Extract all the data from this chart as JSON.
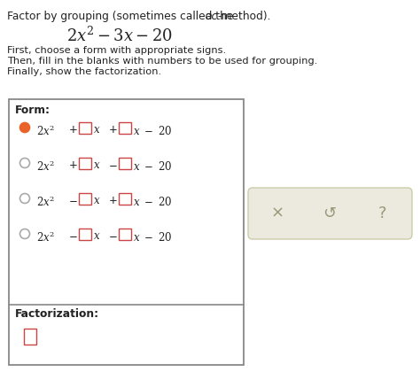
{
  "instructions": [
    "First, choose a form with appropriate signs.",
    "Then, fill in the blanks with numbers to be used for grouping.",
    "Finally, show the factorization."
  ],
  "form_label": "Form:",
  "factorization_label": "Factorization:",
  "rows": [
    {
      "radio_filled": true,
      "sign1": "+",
      "sign2": "+"
    },
    {
      "radio_filled": false,
      "sign1": "+",
      "sign2": "−"
    },
    {
      "radio_filled": false,
      "sign1": "−",
      "sign2": "+"
    },
    {
      "radio_filled": false,
      "sign1": "−",
      "sign2": "−"
    }
  ],
  "radio_filled_color": "#e8622a",
  "radio_empty_color": "#ffffff",
  "radio_border_color": "#aaaaaa",
  "box_border_color": "#cc4444",
  "box_fill_color": "#ffffff",
  "panel_bg": "#ffffff",
  "panel_border": "#888888",
  "sidebar_bg": "#eceade",
  "sidebar_border": "#ccccaa",
  "sidebar_symbol_color": "#999977",
  "bg_color": "#ffffff",
  "text_color": "#222222"
}
